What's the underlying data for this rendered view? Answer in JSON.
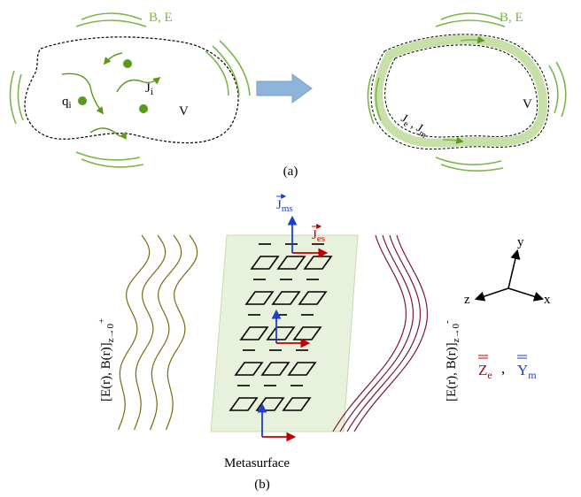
{
  "panel_a": {
    "caption": "(a)",
    "left": {
      "field_label": "B, E",
      "charge_label": "q",
      "charge_sub": "i",
      "current_label": "J",
      "current_sub": "i",
      "volume_label": "V"
    },
    "right": {
      "field_label": "B, E",
      "volume_label": "V",
      "surface_current_label": "J",
      "surface_current_sub": "e",
      "separator": " , ",
      "surface_magnetic_label": "J",
      "surface_magnetic_sub": "m"
    }
  },
  "panel_b": {
    "caption": "(b)",
    "metasurface_label": "Metasurface",
    "j_ms_label": "J",
    "j_ms_sub": "ms",
    "j_es_label": "J",
    "j_es_sub": "es",
    "left_field_label": "[E(r), B(r)]",
    "left_field_sub": "z→0",
    "left_field_sup": "+",
    "right_field_label": "[E(r), B(r)]",
    "right_field_sub": "z→0",
    "right_field_sup": "-",
    "axis_y": "y",
    "axis_z": "z",
    "axis_x": "x",
    "z_e_label": "Z",
    "z_e_sub": "e",
    "separator": " , ",
    "y_m_label": "Y",
    "y_m_sub": "m"
  },
  "colors": {
    "field_green": "#7ab648",
    "dot_green": "#5a9a1a",
    "arrow_green": "#5a9a1a",
    "surface_fill": "#c7e0a8",
    "big_arrow": "#8fb4dc",
    "olive_wave": "#7a6a14",
    "maroon_wave": "#7a1830",
    "blue": "#1c3fcf",
    "red": "#c00000",
    "meta_fill": "#e7f1dc"
  }
}
